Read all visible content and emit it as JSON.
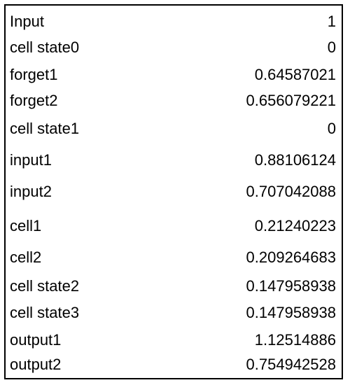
{
  "table": {
    "rows": [
      {
        "label": "Input",
        "value": "1"
      },
      {
        "label": "cell state0",
        "value": "0"
      },
      {
        "label": "forget1",
        "value": "0.64587021"
      },
      {
        "label": "forget2",
        "value": "0.656079221"
      },
      {
        "label": "cell state1",
        "value": "0"
      },
      {
        "label": "input1",
        "value": "0.88106124"
      },
      {
        "label": "input2",
        "value": "0.707042088"
      },
      {
        "label": "cell1",
        "value": "0.21240223"
      },
      {
        "label": "cell2",
        "value": "0.209264683"
      },
      {
        "label": "cell state2",
        "value": "0.147958938"
      },
      {
        "label": "cell state3",
        "value": "0.147958938"
      },
      {
        "label": "output1",
        "value": "1.12514886"
      },
      {
        "label": "output2",
        "value": "0.754942528"
      }
    ]
  }
}
